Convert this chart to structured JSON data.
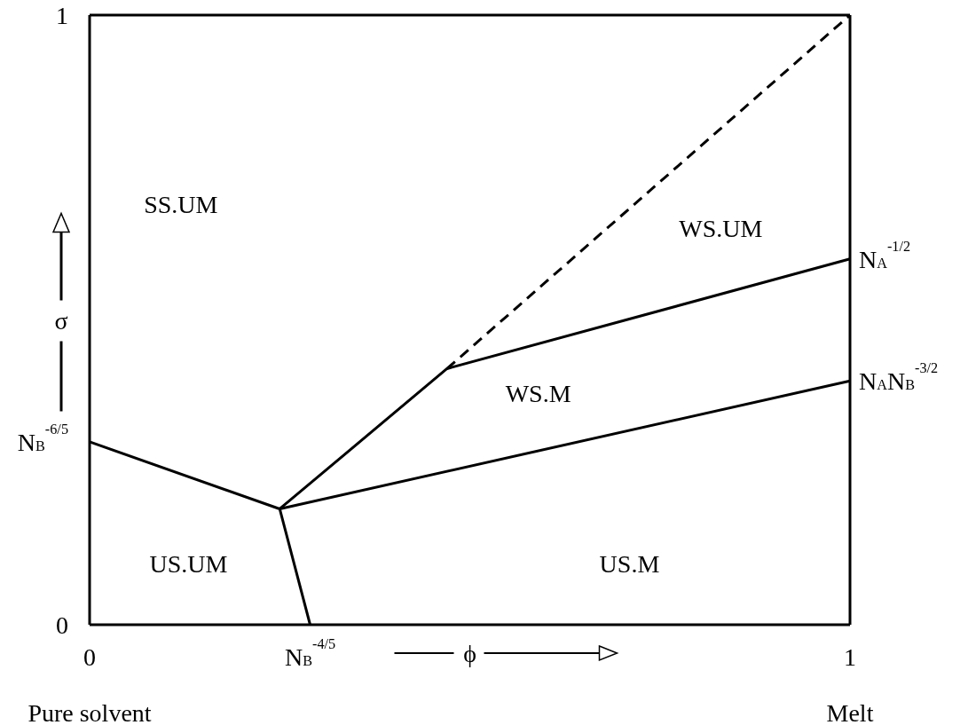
{
  "chart_data": {
    "type": "line",
    "xlabel": "ϕ",
    "ylabel": "σ",
    "xlim": [
      0,
      1
    ],
    "ylim": [
      0,
      1
    ],
    "xticks": [
      0,
      {
        "value": 0.29,
        "label": "N$_{B}$$^{-4/5}$"
      },
      1
    ],
    "yticks": [
      0,
      {
        "value": 0.3,
        "label": "N$_{B}$$^{-6/5}$"
      },
      1
    ],
    "series": [
      {
        "color": "#000000",
        "x": [
          0,
          0.25,
          0.29
        ],
        "values": [
          0.3,
          0.19,
          0
        ]
      },
      {
        "color": "#000000",
        "x": [
          0.25,
          0.47,
          1
        ],
        "values": [
          0.19,
          0.42,
          0.6
        ]
      },
      {
        "color": "#000000",
        "x": [
          0.25,
          1
        ],
        "values": [
          0.19,
          0.4
        ]
      },
      {
        "color": "#000000",
        "x": [
          0.47,
          1
        ],
        "values": [
          0.42,
          1
        ],
        "line_style": "dashed"
      }
    ],
    "annotations": [
      "SS.UM",
      "WS.UM",
      "WS.M",
      "US.UM",
      "US.M",
      "Pure solvent",
      "Melt",
      {
        "text": "N$_{A}$$^{-1/2}$",
        "x": 1,
        "y": 0.6
      },
      {
        "text": "N$_{A}$N$_{B}$$^{-3/2}$",
        "x": 1,
        "y": 0.4
      }
    ]
  }
}
